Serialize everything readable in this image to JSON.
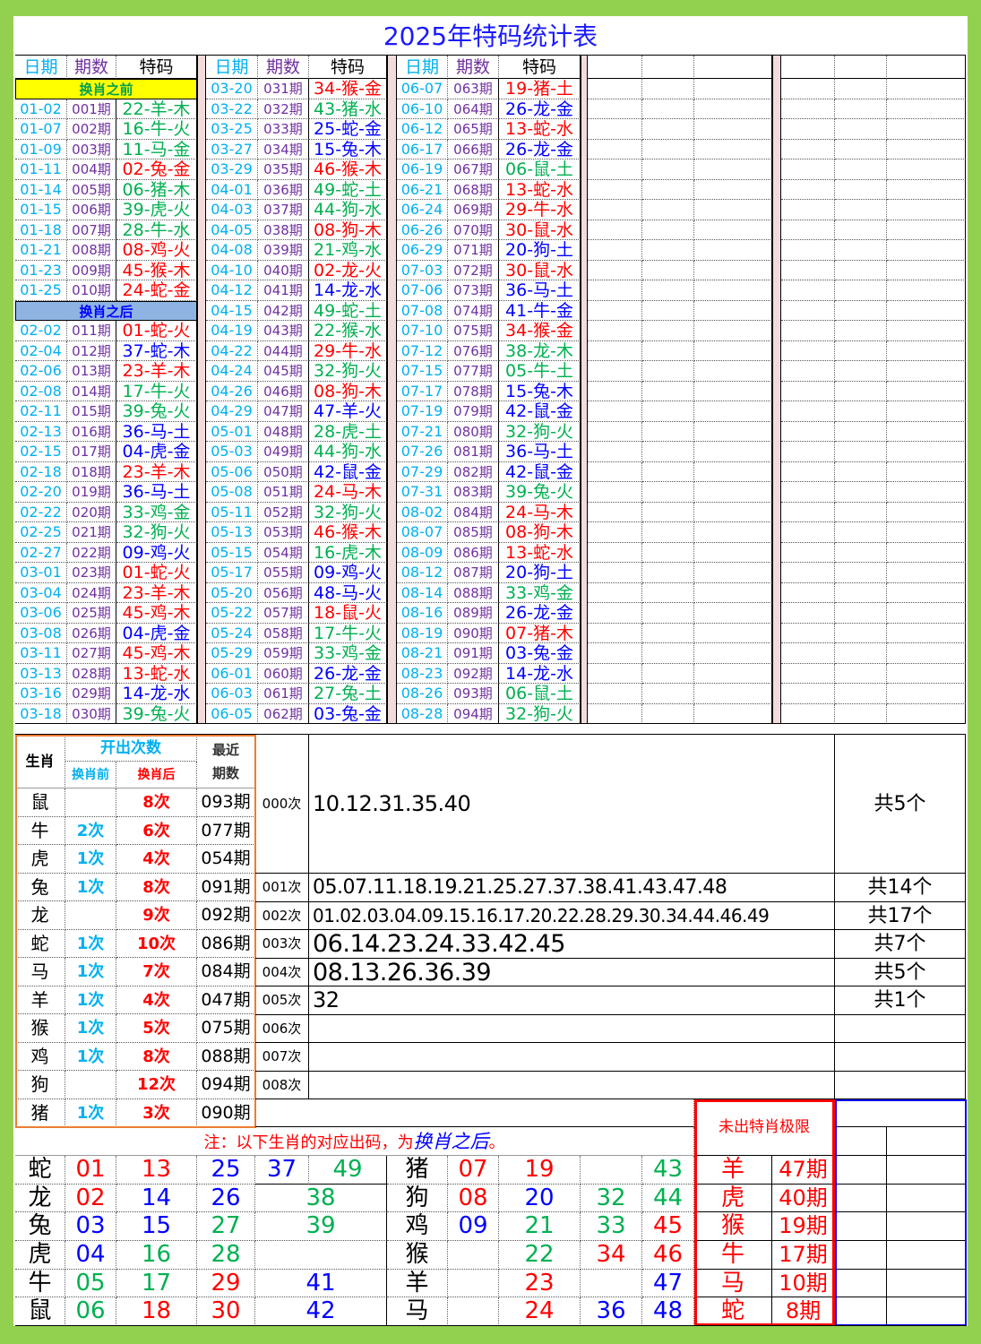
{
  "title": "2025年特码统计表",
  "colors": {
    "red": "#ff0000",
    "blue": "#0000ff",
    "green": "#00b050",
    "date": "#00b0f0",
    "period": "#7030a0",
    "frame": "#92d050",
    "orange_border": "#ed7d31"
  },
  "wave": {
    "red": [
      "01",
      "02",
      "07",
      "08",
      "12",
      "13",
      "18",
      "19",
      "23",
      "24",
      "29",
      "30",
      "34",
      "35",
      "40",
      "45",
      "46"
    ],
    "blue": [
      "03",
      "04",
      "09",
      "10",
      "14",
      "15",
      "20",
      "25",
      "26",
      "31",
      "36",
      "37",
      "41",
      "42",
      "47",
      "48"
    ],
    "green": [
      "05",
      "06",
      "11",
      "16",
      "17",
      "21",
      "22",
      "27",
      "28",
      "32",
      "33",
      "38",
      "39",
      "43",
      "44",
      "49"
    ]
  },
  "headers": {
    "date": "日期",
    "period": "期数",
    "code": "特码"
  },
  "columns": [
    {
      "rows": [
        {
          "section": "换肖之前"
        },
        {
          "date": "01-02",
          "period": "001期",
          "code": "22-羊-木"
        },
        {
          "date": "01-07",
          "period": "002期",
          "code": "16-牛-火"
        },
        {
          "date": "01-09",
          "period": "003期",
          "code": "11-马-金"
        },
        {
          "date": "01-11",
          "period": "004期",
          "code": "02-兔-金"
        },
        {
          "date": "01-14",
          "period": "005期",
          "code": "06-猪-木"
        },
        {
          "date": "01-15",
          "period": "006期",
          "code": "39-虎-火"
        },
        {
          "date": "01-18",
          "period": "007期",
          "code": "28-牛-水"
        },
        {
          "date": "01-21",
          "period": "008期",
          "code": "08-鸡-火"
        },
        {
          "date": "01-23",
          "period": "009期",
          "code": "45-猴-木"
        },
        {
          "date": "01-25",
          "period": "010期",
          "code": "24-蛇-金"
        },
        {
          "section": "换肖之后"
        },
        {
          "date": "02-02",
          "period": "011期",
          "code": "01-蛇-火"
        },
        {
          "date": "02-04",
          "period": "012期",
          "code": "37-蛇-木"
        },
        {
          "date": "02-06",
          "period": "013期",
          "code": "23-羊-木"
        },
        {
          "date": "02-08",
          "period": "014期",
          "code": "17-牛-火"
        },
        {
          "date": "02-11",
          "period": "015期",
          "code": "39-兔-火"
        },
        {
          "date": "02-13",
          "period": "016期",
          "code": "36-马-土"
        },
        {
          "date": "02-15",
          "period": "017期",
          "code": "04-虎-金"
        },
        {
          "date": "02-18",
          "period": "018期",
          "code": "23-羊-木"
        },
        {
          "date": "02-20",
          "period": "019期",
          "code": "36-马-土"
        },
        {
          "date": "02-22",
          "period": "020期",
          "code": "33-鸡-金"
        },
        {
          "date": "02-25",
          "period": "021期",
          "code": "32-狗-火"
        },
        {
          "date": "02-27",
          "period": "022期",
          "code": "09-鸡-火"
        },
        {
          "date": "03-01",
          "period": "023期",
          "code": "01-蛇-火"
        },
        {
          "date": "03-04",
          "period": "024期",
          "code": "23-羊-木"
        },
        {
          "date": "03-06",
          "period": "025期",
          "code": "45-鸡-木"
        },
        {
          "date": "03-08",
          "period": "026期",
          "code": "04-虎-金"
        },
        {
          "date": "03-11",
          "period": "027期",
          "code": "45-鸡-木"
        },
        {
          "date": "03-13",
          "period": "028期",
          "code": "13-蛇-水"
        },
        {
          "date": "03-16",
          "period": "029期",
          "code": "14-龙-水"
        },
        {
          "date": "03-18",
          "period": "030期",
          "code": "39-兔-火"
        }
      ]
    },
    {
      "rows": [
        {
          "date": "03-20",
          "period": "031期",
          "code": "34-猴-金"
        },
        {
          "date": "03-22",
          "period": "032期",
          "code": "43-猪-水"
        },
        {
          "date": "03-25",
          "period": "033期",
          "code": "25-蛇-金"
        },
        {
          "date": "03-27",
          "period": "034期",
          "code": "15-兔-木"
        },
        {
          "date": "03-29",
          "period": "035期",
          "code": "46-猴-木"
        },
        {
          "date": "04-01",
          "period": "036期",
          "code": "49-蛇-土"
        },
        {
          "date": "04-03",
          "period": "037期",
          "code": "44-狗-水"
        },
        {
          "date": "04-05",
          "period": "038期",
          "code": "08-狗-木"
        },
        {
          "date": "04-08",
          "period": "039期",
          "code": "21-鸡-水"
        },
        {
          "date": "04-10",
          "period": "040期",
          "code": "02-龙-火"
        },
        {
          "date": "04-12",
          "period": "041期",
          "code": "14-龙-水"
        },
        {
          "date": "04-15",
          "period": "042期",
          "code": "49-蛇-土"
        },
        {
          "date": "04-19",
          "period": "043期",
          "code": "22-猴-水"
        },
        {
          "date": "04-22",
          "period": "044期",
          "code": "29-牛-水"
        },
        {
          "date": "04-24",
          "period": "045期",
          "code": "32-狗-火"
        },
        {
          "date": "04-26",
          "period": "046期",
          "code": "08-狗-木"
        },
        {
          "date": "04-29",
          "period": "047期",
          "code": "47-羊-火"
        },
        {
          "date": "05-01",
          "period": "048期",
          "code": "28-虎-土"
        },
        {
          "date": "05-03",
          "period": "049期",
          "code": "44-狗-水"
        },
        {
          "date": "05-06",
          "period": "050期",
          "code": "42-鼠-金"
        },
        {
          "date": "05-08",
          "period": "051期",
          "code": "24-马-木"
        },
        {
          "date": "05-11",
          "period": "052期",
          "code": "32-狗-火"
        },
        {
          "date": "05-13",
          "period": "053期",
          "code": "46-猴-木"
        },
        {
          "date": "05-15",
          "period": "054期",
          "code": "16-虎-木"
        },
        {
          "date": "05-17",
          "period": "055期",
          "code": "09-鸡-火"
        },
        {
          "date": "05-20",
          "period": "056期",
          "code": "48-马-火"
        },
        {
          "date": "05-22",
          "period": "057期",
          "code": "18-鼠-火"
        },
        {
          "date": "05-24",
          "period": "058期",
          "code": "17-牛-火"
        },
        {
          "date": "05-29",
          "period": "059期",
          "code": "33-鸡-金"
        },
        {
          "date": "06-01",
          "period": "060期",
          "code": "26-龙-金"
        },
        {
          "date": "06-03",
          "period": "061期",
          "code": "27-兔-土"
        },
        {
          "date": "06-05",
          "period": "062期",
          "code": "03-兔-金"
        }
      ]
    },
    {
      "rows": [
        {
          "date": "06-07",
          "period": "063期",
          "code": "19-猪-土"
        },
        {
          "date": "06-10",
          "period": "064期",
          "code": "26-龙-金"
        },
        {
          "date": "06-12",
          "period": "065期",
          "code": "13-蛇-水"
        },
        {
          "date": "06-17",
          "period": "066期",
          "code": "26-龙-金"
        },
        {
          "date": "06-19",
          "period": "067期",
          "code": "06-鼠-土"
        },
        {
          "date": "06-21",
          "period": "068期",
          "code": "13-蛇-水"
        },
        {
          "date": "06-24",
          "period": "069期",
          "code": "29-牛-水"
        },
        {
          "date": "06-26",
          "period": "070期",
          "code": "30-鼠-水"
        },
        {
          "date": "06-29",
          "period": "071期",
          "code": "20-狗-土"
        },
        {
          "date": "07-03",
          "period": "072期",
          "code": "30-鼠-水"
        },
        {
          "date": "07-06",
          "period": "073期",
          "code": "36-马-土"
        },
        {
          "date": "07-08",
          "period": "074期",
          "code": "41-牛-金"
        },
        {
          "date": "07-10",
          "period": "075期",
          "code": "34-猴-金"
        },
        {
          "date": "07-12",
          "period": "076期",
          "code": "38-龙-木"
        },
        {
          "date": "07-15",
          "period": "077期",
          "code": "05-牛-土"
        },
        {
          "date": "07-17",
          "period": "078期",
          "code": "15-兔-木"
        },
        {
          "date": "07-19",
          "period": "079期",
          "code": "42-鼠-金"
        },
        {
          "date": "07-21",
          "period": "080期",
          "code": "32-狗-火"
        },
        {
          "date": "07-26",
          "period": "081期",
          "code": "36-马-土"
        },
        {
          "date": "07-29",
          "period": "082期",
          "code": "42-鼠-金"
        },
        {
          "date": "07-31",
          "period": "083期",
          "code": "39-兔-火"
        },
        {
          "date": "08-02",
          "period": "084期",
          "code": "24-马-木"
        },
        {
          "date": "08-07",
          "period": "085期",
          "code": "08-狗-木"
        },
        {
          "date": "08-09",
          "period": "086期",
          "code": "13-蛇-水"
        },
        {
          "date": "08-12",
          "period": "087期",
          "code": "20-狗-土"
        },
        {
          "date": "08-14",
          "period": "088期",
          "code": "33-鸡-金"
        },
        {
          "date": "08-16",
          "period": "089期",
          "code": "26-龙-金"
        },
        {
          "date": "08-19",
          "period": "090期",
          "code": "07-猪-木"
        },
        {
          "date": "08-21",
          "period": "091期",
          "code": "03-兔-金"
        },
        {
          "date": "08-23",
          "period": "092期",
          "code": "14-龙-水"
        },
        {
          "date": "08-26",
          "period": "093期",
          "code": "06-鼠-土"
        },
        {
          "date": "08-28",
          "period": "094期",
          "code": "32-狗-火"
        }
      ]
    }
  ],
  "stats": {
    "header": {
      "zodiac": "生肖",
      "count": "开出次数",
      "before": "换肖前",
      "after": "换肖后",
      "recent_line1": "最近",
      "recent_line2": "期数"
    },
    "rows": [
      {
        "zodiac": "鼠",
        "before": "",
        "after": "8次",
        "recent": "093期"
      },
      {
        "zodiac": "牛",
        "before": "2次",
        "after": "6次",
        "recent": "077期"
      },
      {
        "zodiac": "虎",
        "before": "1次",
        "after": "4次",
        "recent": "054期"
      },
      {
        "zodiac": "兔",
        "before": "1次",
        "after": "8次",
        "recent": "091期"
      },
      {
        "zodiac": "龙",
        "before": "",
        "after": "9次",
        "recent": "092期"
      },
      {
        "zodiac": "蛇",
        "before": "1次",
        "after": "10次",
        "recent": "086期"
      },
      {
        "zodiac": "马",
        "before": "1次",
        "after": "7次",
        "recent": "084期"
      },
      {
        "zodiac": "羊",
        "before": "1次",
        "after": "4次",
        "recent": "047期"
      },
      {
        "zodiac": "猴",
        "before": "1次",
        "after": "5次",
        "recent": "075期"
      },
      {
        "zodiac": "鸡",
        "before": "1次",
        "after": "8次",
        "recent": "088期"
      },
      {
        "zodiac": "狗",
        "before": "",
        "after": "12次",
        "recent": "094期"
      },
      {
        "zodiac": "猪",
        "before": "1次",
        "after": "3次",
        "recent": "090期"
      }
    ]
  },
  "frequency": [
    {
      "label": "000次",
      "numbers": "10.12.31.35.40",
      "total": "共5个"
    },
    {
      "label": "001次",
      "numbers": "05.07.11.18.19.21.25.27.37.38.41.43.47.48",
      "total": "共14个"
    },
    {
      "label": "002次",
      "numbers": "01.02.03.04.09.15.16.17.20.22.28.29.30.34.44.46.49",
      "total": "共17个"
    },
    {
      "label": "003次",
      "numbers": "06.14.23.24.33.42.45",
      "total": "共7个"
    },
    {
      "label": "004次",
      "numbers": "08.13.26.36.39",
      "total": "共5个"
    },
    {
      "label": "005次",
      "numbers": "32",
      "total": "共1个"
    },
    {
      "label": "006次",
      "numbers": "",
      "total": ""
    },
    {
      "label": "007次",
      "numbers": "",
      "total": ""
    },
    {
      "label": "008次",
      "numbers": "",
      "total": ""
    }
  ],
  "note": {
    "prefix": "注：以下生肖的对应出码，为",
    "emphasis": "换肖之后",
    "suffix": "。"
  },
  "zodiac_numbers_left": [
    {
      "zodiac": "蛇",
      "nums": [
        "01",
        "13",
        "25",
        "37",
        "49"
      ]
    },
    {
      "zodiac": "龙",
      "nums": [
        "02",
        "14",
        "26",
        "38"
      ]
    },
    {
      "zodiac": "兔",
      "nums": [
        "03",
        "15",
        "27",
        "39"
      ]
    },
    {
      "zodiac": "虎",
      "nums": [
        "04",
        "16",
        "28",
        ""
      ]
    },
    {
      "zodiac": "牛",
      "nums": [
        "05",
        "17",
        "29",
        "41"
      ]
    },
    {
      "zodiac": "鼠",
      "nums": [
        "06",
        "18",
        "30",
        "42"
      ]
    }
  ],
  "zodiac_numbers_right": [
    {
      "zodiac": "猪",
      "nums": [
        "07",
        "19",
        "",
        "43"
      ]
    },
    {
      "zodiac": "狗",
      "nums": [
        "08",
        "20",
        "32",
        "44"
      ]
    },
    {
      "zodiac": "鸡",
      "nums": [
        "09",
        "21",
        "33",
        "45"
      ]
    },
    {
      "zodiac": "猴",
      "nums": [
        "",
        "22",
        "34",
        "46"
      ]
    },
    {
      "zodiac": "羊",
      "nums": [
        "",
        "23",
        "",
        "47"
      ]
    },
    {
      "zodiac": "马",
      "nums": [
        "",
        "24",
        "36",
        "48"
      ]
    }
  ],
  "absence_limit": {
    "title": "未出特肖极限",
    "rows": [
      {
        "zodiac": "羊",
        "periods": "47期"
      },
      {
        "zodiac": "虎",
        "periods": "40期"
      },
      {
        "zodiac": "猴",
        "periods": "19期"
      },
      {
        "zodiac": "牛",
        "periods": "17期"
      },
      {
        "zodiac": "马",
        "periods": "10期"
      },
      {
        "zodiac": "蛇",
        "periods": "8期"
      }
    ]
  }
}
